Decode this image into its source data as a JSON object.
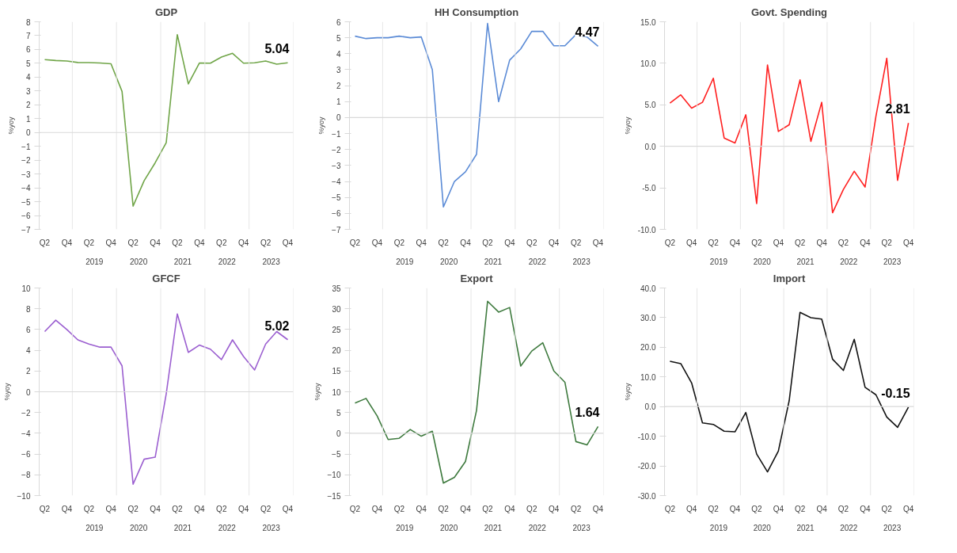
{
  "chart_data": [
    {
      "type": "line",
      "title": "GDP",
      "ylabel": "%yoy",
      "categories": [
        "Q2",
        null,
        "Q4",
        null,
        "Q2",
        null,
        "Q4",
        null,
        "Q2",
        null,
        "Q4",
        null,
        "Q2",
        null,
        "Q4",
        null,
        "Q2",
        null,
        "Q4",
        null,
        "Q2",
        null,
        "Q4"
      ],
      "annotations": [
        "2019",
        "2020",
        "2021",
        "2022",
        "2023"
      ],
      "series": [
        {
          "color": "#70a548",
          "values": [
            5.27,
            5.2,
            5.17,
            5.06,
            5.05,
            5.02,
            4.97,
            2.97,
            -5.32,
            -3.49,
            -2.19,
            -0.74,
            7.07,
            3.51,
            5.02,
            5.01,
            5.45,
            5.72,
            5.01,
            5.04,
            5.17,
            4.94,
            5.04
          ],
          "value_labels": [
            null,
            null,
            null,
            null,
            null,
            null,
            null,
            null,
            null,
            null,
            null,
            null,
            null,
            null,
            null,
            null,
            null,
            null,
            null,
            null,
            null,
            null,
            "5.04"
          ]
        }
      ],
      "ylim": [
        -7,
        8
      ],
      "yticks": [
        -7,
        -6,
        -5,
        -4,
        -3,
        -2,
        -1,
        0,
        1,
        2,
        3,
        4,
        5,
        6,
        7,
        8
      ],
      "ref_lines": [
        {
          "axis": "y",
          "value": 0,
          "color": "#d9d9d9"
        }
      ],
      "grid": false,
      "marker": "none",
      "line_style": "solid"
    },
    {
      "type": "line",
      "title": "HH Consumption",
      "ylabel": "%yoy",
      "categories": [
        "Q2",
        null,
        "Q4",
        null,
        "Q2",
        null,
        "Q4",
        null,
        "Q2",
        null,
        "Q4",
        null,
        "Q2",
        null,
        "Q4",
        null,
        "Q2",
        null,
        "Q4",
        null,
        "Q2",
        null,
        "Q4"
      ],
      "annotations": [
        "2019",
        "2020",
        "2021",
        "2022",
        "2023"
      ],
      "series": [
        {
          "color": "#5b8bd6",
          "values": [
            5.1,
            4.95,
            5.0,
            5.0,
            5.1,
            5.0,
            5.05,
            3.0,
            -5.6,
            -4.0,
            -3.4,
            -2.3,
            5.9,
            1.0,
            3.6,
            4.3,
            5.4,
            5.4,
            4.5,
            4.5,
            5.2,
            5.05,
            4.47
          ],
          "value_labels": [
            null,
            null,
            null,
            null,
            null,
            null,
            null,
            null,
            null,
            null,
            null,
            null,
            null,
            null,
            null,
            null,
            null,
            null,
            null,
            null,
            null,
            null,
            "4.47"
          ]
        }
      ],
      "ylim": [
        -7,
        6
      ],
      "yticks": [
        -7,
        -6,
        -5,
        -4,
        -3,
        -2,
        -1,
        0,
        1,
        2,
        3,
        4,
        5,
        6
      ],
      "ref_lines": [
        {
          "axis": "y",
          "value": 0,
          "color": "#d9d9d9"
        }
      ],
      "grid": false,
      "marker": "none",
      "line_style": "solid"
    },
    {
      "type": "line",
      "title": "Govt. Spending",
      "ylabel": "%yoy",
      "categories": [
        "Q2",
        null,
        "Q4",
        null,
        "Q2",
        null,
        "Q4",
        null,
        "Q2",
        null,
        "Q4",
        null,
        "Q2",
        null,
        "Q4",
        null,
        "Q2",
        null,
        "Q4",
        null,
        "Q2",
        null,
        "Q4"
      ],
      "annotations": [
        "2019",
        "2020",
        "2021",
        "2022",
        "2023"
      ],
      "series": [
        {
          "color": "#ff2020",
          "values": [
            5.2,
            6.2,
            4.6,
            5.3,
            8.2,
            1.0,
            0.4,
            3.8,
            -6.9,
            9.8,
            1.8,
            2.6,
            8.0,
            0.6,
            5.3,
            -8.0,
            -5.2,
            -3.0,
            -4.9,
            3.6,
            10.6,
            -4.1,
            2.81
          ],
          "value_labels": [
            null,
            null,
            null,
            null,
            null,
            null,
            null,
            null,
            null,
            null,
            null,
            null,
            null,
            null,
            null,
            null,
            null,
            null,
            null,
            null,
            null,
            null,
            "2.81"
          ]
        }
      ],
      "ylim": [
        -10,
        15
      ],
      "yticks": [
        {
          "value": -10,
          "label": "-10.0"
        },
        {
          "value": -5,
          "label": "-5.0"
        },
        {
          "value": 0,
          "label": "0.0"
        },
        {
          "value": 5,
          "label": "5.0"
        },
        {
          "value": 10,
          "label": "10.0"
        },
        {
          "value": 15,
          "label": "15.0"
        }
      ],
      "ref_lines": [
        {
          "axis": "y",
          "value": 0,
          "color": "#d9d9d9"
        }
      ],
      "grid": false,
      "marker": "none",
      "line_style": "solid"
    },
    {
      "type": "line",
      "title": "GFCF",
      "ylabel": "%yoy",
      "categories": [
        "Q2",
        null,
        "Q4",
        null,
        "Q2",
        null,
        "Q4",
        null,
        "Q2",
        null,
        "Q4",
        null,
        "Q2",
        null,
        "Q4",
        null,
        "Q2",
        null,
        "Q4",
        null,
        "Q2",
        null,
        "Q4"
      ],
      "annotations": [
        "2019",
        "2020",
        "2021",
        "2022",
        "2023"
      ],
      "series": [
        {
          "color": "#9b5fd0",
          "values": [
            5.8,
            6.9,
            6.0,
            5.0,
            4.6,
            4.3,
            4.3,
            2.5,
            -8.9,
            -6.5,
            -6.3,
            -0.2,
            7.5,
            3.8,
            4.5,
            4.1,
            3.1,
            5.0,
            3.4,
            2.1,
            4.6,
            5.8,
            5.02
          ],
          "value_labels": [
            null,
            null,
            null,
            null,
            null,
            null,
            null,
            null,
            null,
            null,
            null,
            null,
            null,
            null,
            null,
            null,
            null,
            null,
            null,
            null,
            null,
            null,
            "5.02"
          ]
        }
      ],
      "ylim": [
        -10,
        10
      ],
      "yticks": [
        -10,
        -8,
        -6,
        -4,
        -2,
        0,
        2,
        4,
        6,
        8,
        10
      ],
      "ref_lines": [
        {
          "axis": "y",
          "value": 0,
          "color": "#d9d9d9"
        }
      ],
      "grid": false,
      "marker": "none",
      "line_style": "solid"
    },
    {
      "type": "line",
      "title": "Export",
      "ylabel": "%yoy",
      "categories": [
        "Q2",
        null,
        "Q4",
        null,
        "Q2",
        null,
        "Q4",
        null,
        "Q2",
        null,
        "Q4",
        null,
        "Q2",
        null,
        "Q4",
        null,
        "Q2",
        null,
        "Q4",
        null,
        "Q2",
        null,
        "Q4"
      ],
      "annotations": [
        "2019",
        "2020",
        "2021",
        "2022",
        "2023"
      ],
      "series": [
        {
          "color": "#3e7a3e",
          "values": [
            7.3,
            8.4,
            4.2,
            -1.5,
            -1.2,
            0.9,
            -0.7,
            0.5,
            -12.0,
            -10.6,
            -6.8,
            5.5,
            31.8,
            29.2,
            30.3,
            16.2,
            19.8,
            21.8,
            15.0,
            12.3,
            -2.0,
            -2.8,
            1.64
          ],
          "value_labels": [
            null,
            null,
            null,
            null,
            null,
            null,
            null,
            null,
            null,
            null,
            null,
            null,
            null,
            null,
            null,
            null,
            null,
            null,
            null,
            null,
            null,
            null,
            "1.64"
          ]
        }
      ],
      "ylim": [
        -15,
        35
      ],
      "yticks": [
        -15,
        -10,
        -5,
        0,
        5,
        10,
        15,
        20,
        25,
        30,
        35
      ],
      "ref_lines": [
        {
          "axis": "y",
          "value": 0,
          "color": "#d9d9d9"
        }
      ],
      "grid": false,
      "marker": "none",
      "line_style": "solid"
    },
    {
      "type": "line",
      "title": "Import",
      "ylabel": "%yoy",
      "categories": [
        "Q2",
        null,
        "Q4",
        null,
        "Q2",
        null,
        "Q4",
        null,
        "Q2",
        null,
        "Q4",
        null,
        "Q2",
        null,
        "Q4",
        null,
        "Q2",
        null,
        "Q4",
        null,
        "Q2",
        null,
        "Q4"
      ],
      "annotations": [
        "2019",
        "2020",
        "2021",
        "2022",
        "2023"
      ],
      "series": [
        {
          "color": "#111111",
          "values": [
            15.3,
            14.5,
            8.0,
            -5.5,
            -6.0,
            -8.3,
            -8.5,
            -2.0,
            -16.0,
            -22.0,
            -15.0,
            2.0,
            31.8,
            30.0,
            29.5,
            16.0,
            12.2,
            22.7,
            6.5,
            4.0,
            -3.5,
            -7.0,
            -0.15
          ],
          "value_labels": [
            null,
            null,
            null,
            null,
            null,
            null,
            null,
            null,
            null,
            null,
            null,
            null,
            null,
            null,
            null,
            null,
            null,
            null,
            null,
            null,
            null,
            null,
            "-0.15"
          ]
        }
      ],
      "ylim": [
        -30,
        40
      ],
      "yticks": [
        {
          "value": -30,
          "label": "-30.0"
        },
        {
          "value": -20,
          "label": "-20.0"
        },
        {
          "value": -10,
          "label": "-10.0"
        },
        {
          "value": 0,
          "label": "0.0"
        },
        {
          "value": 10,
          "label": "10.0"
        },
        {
          "value": 20,
          "label": "20.0"
        },
        {
          "value": 30,
          "label": "30.0"
        },
        {
          "value": 40,
          "label": "40.0"
        }
      ],
      "ref_lines": [
        {
          "axis": "y",
          "value": 0,
          "color": "#d9d9d9"
        }
      ],
      "grid": false,
      "marker": "none",
      "line_style": "solid"
    }
  ]
}
